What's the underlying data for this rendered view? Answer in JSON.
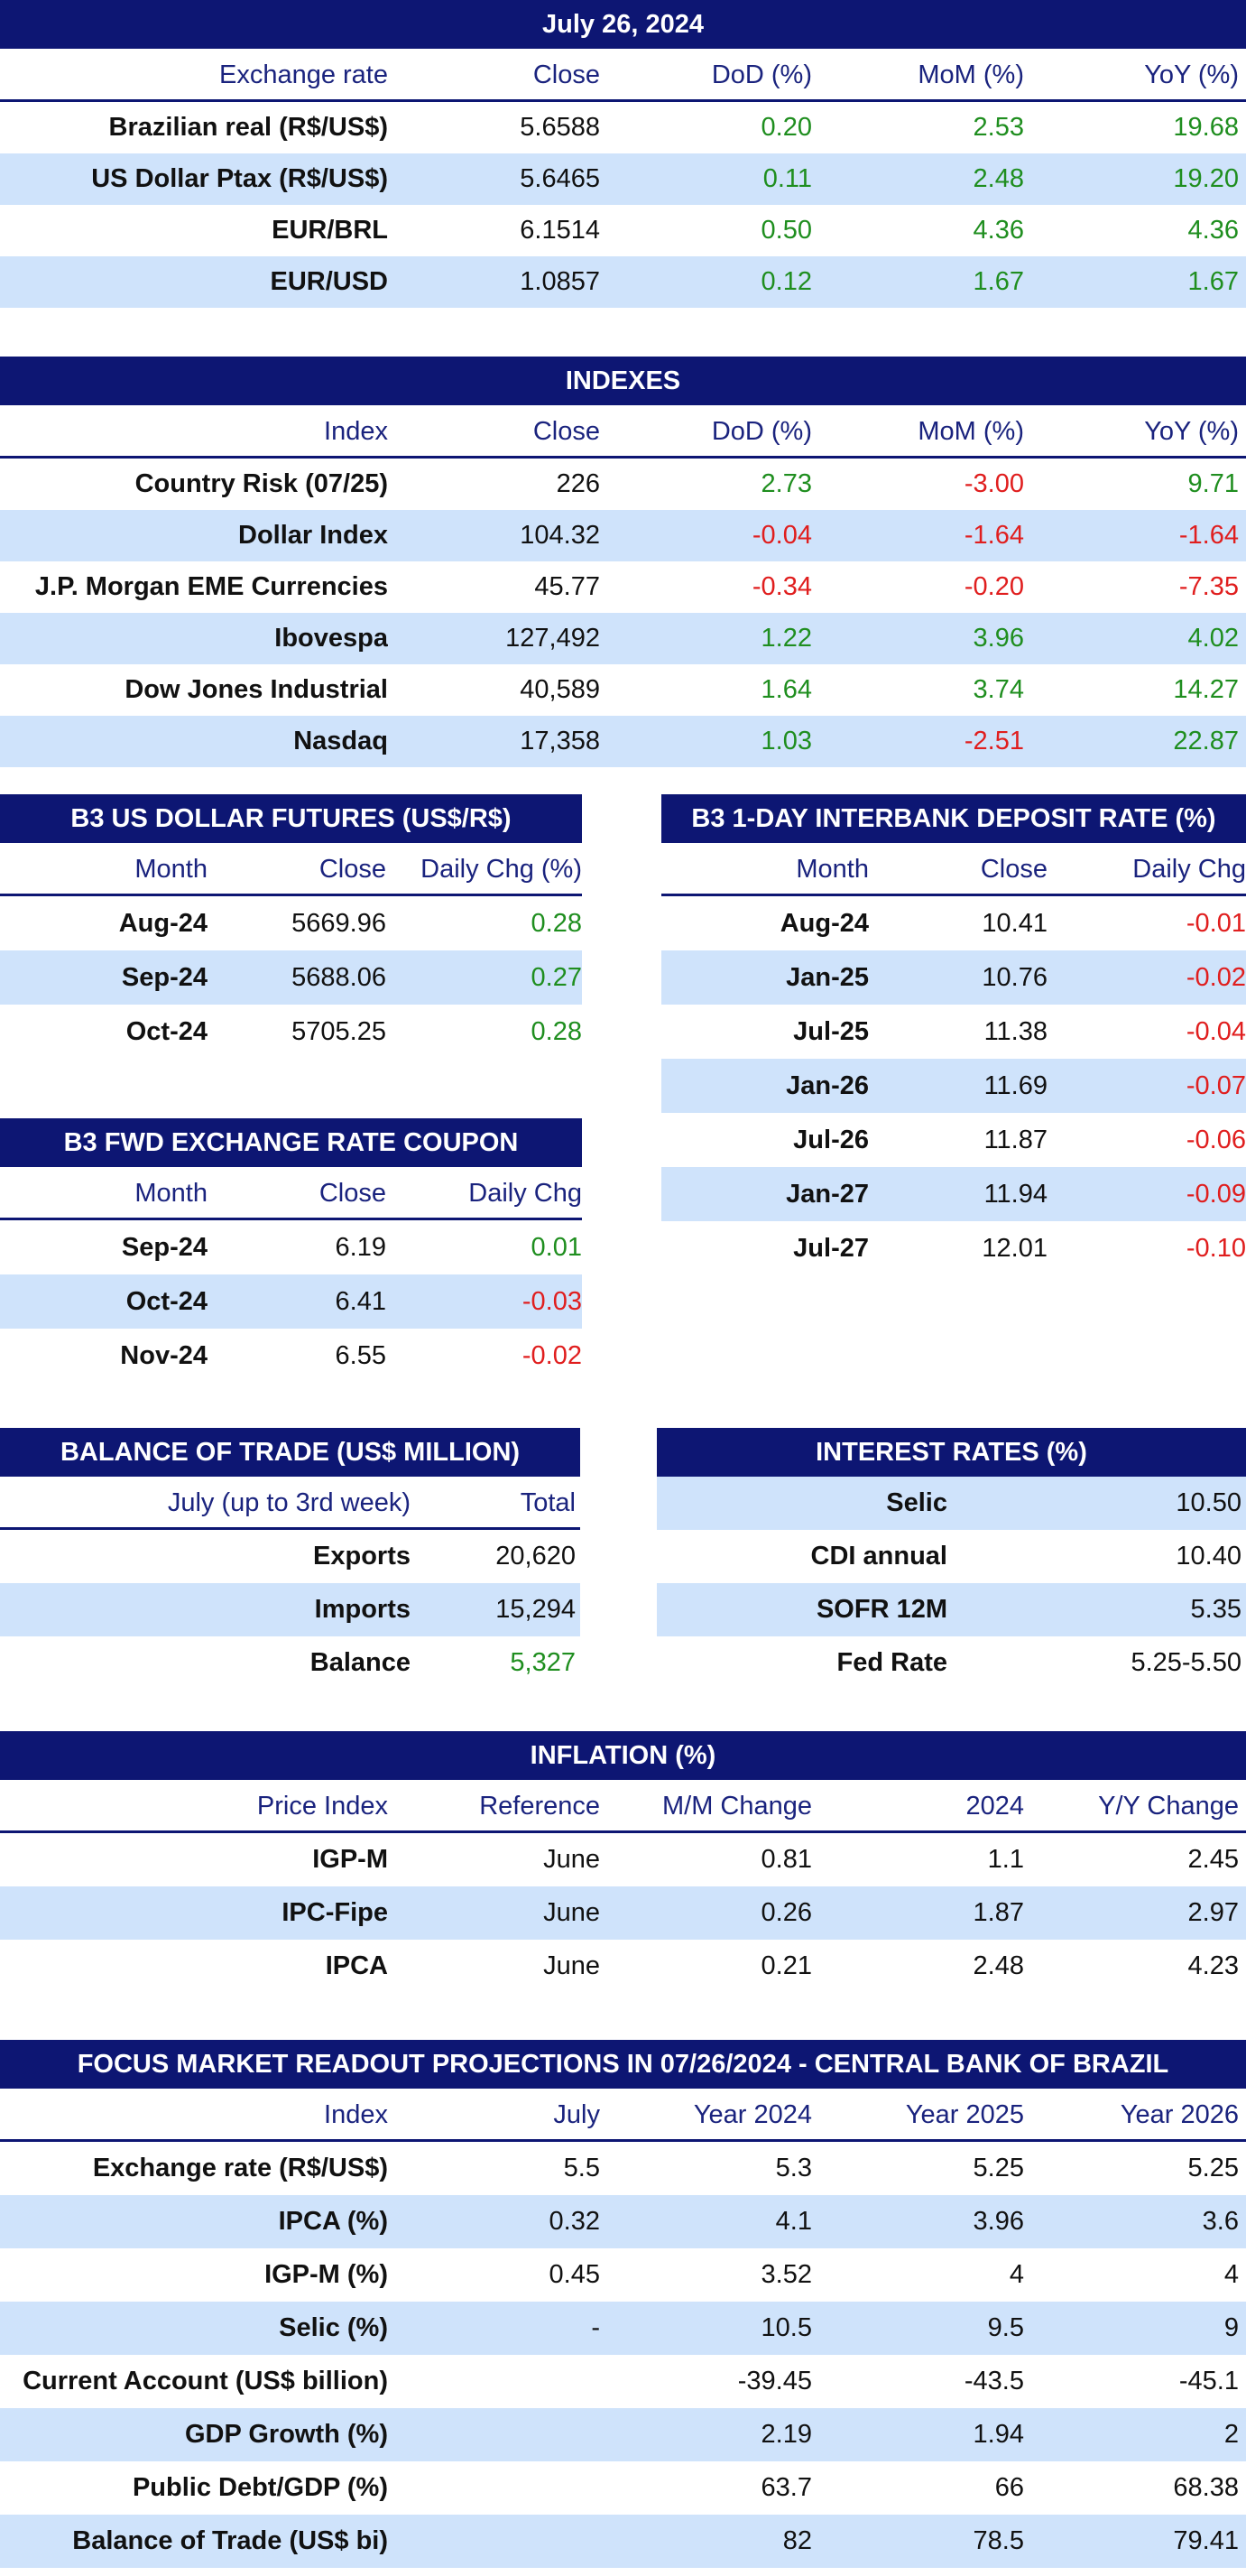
{
  "exchange": {
    "title": "July 26, 2024",
    "headers": [
      "Exchange rate",
      "Close",
      "DoD (%)",
      "MoM (%)",
      "YoY (%)"
    ],
    "rows": [
      {
        "label": "Brazilian real (R$/US$)",
        "close": "5.6588",
        "dod": "0.20",
        "mom": "2.53",
        "yoy": "19.68"
      },
      {
        "label": "US Dollar Ptax (R$/US$)",
        "close": "5.6465",
        "dod": "0.11",
        "mom": "2.48",
        "yoy": "19.20"
      },
      {
        "label": "EUR/BRL",
        "close": "6.1514",
        "dod": "0.50",
        "mom": "4.36",
        "yoy": "4.36"
      },
      {
        "label": "EUR/USD",
        "close": "1.0857",
        "dod": "0.12",
        "mom": "1.67",
        "yoy": "1.67"
      }
    ]
  },
  "indexes": {
    "title": "INDEXES",
    "headers": [
      "Index",
      "Close",
      "DoD (%)",
      "MoM (%)",
      "YoY (%)"
    ],
    "rows": [
      {
        "label": "Country Risk (07/25)",
        "close": "226",
        "dod": "2.73",
        "mom": "-3.00",
        "yoy": "9.71"
      },
      {
        "label": "Dollar Index",
        "close": "104.32",
        "dod": "-0.04",
        "mom": "-1.64",
        "yoy": "-1.64"
      },
      {
        "label": "J.P. Morgan EME Currencies",
        "close": "45.77",
        "dod": "-0.34",
        "mom": "-0.20",
        "yoy": "-7.35"
      },
      {
        "label": "Ibovespa",
        "close": "127,492",
        "dod": "1.22",
        "mom": "3.96",
        "yoy": "4.02"
      },
      {
        "label": "Dow Jones Industrial",
        "close": "40,589",
        "dod": "1.64",
        "mom": "3.74",
        "yoy": "14.27"
      },
      {
        "label": "Nasdaq",
        "close": "17,358",
        "dod": "1.03",
        "mom": "-2.51",
        "yoy": "22.87"
      }
    ]
  },
  "futures": {
    "title": "B3 US DOLLAR FUTURES (US$/R$)",
    "headers": [
      "Month",
      "Close",
      "Daily Chg (%)"
    ],
    "rows": [
      {
        "month": "Aug-24",
        "close": "5669.96",
        "chg": "0.28"
      },
      {
        "month": "Sep-24",
        "close": "5688.06",
        "chg": "0.27"
      },
      {
        "month": "Oct-24",
        "close": "5705.25",
        "chg": "0.28"
      }
    ]
  },
  "interbank": {
    "title": "B3 1-DAY INTERBANK DEPOSIT RATE (%)",
    "headers": [
      "Month",
      "Close",
      "Daily Chg"
    ],
    "rows": [
      {
        "month": "Aug-24",
        "close": "10.41",
        "chg": "-0.01"
      },
      {
        "month": "Jan-25",
        "close": "10.76",
        "chg": "-0.02"
      },
      {
        "month": "Jul-25",
        "close": "11.38",
        "chg": "-0.04"
      },
      {
        "month": "Jan-26",
        "close": "11.69",
        "chg": "-0.07"
      },
      {
        "month": "Jul-26",
        "close": "11.87",
        "chg": "-0.06"
      },
      {
        "month": "Jan-27",
        "close": "11.94",
        "chg": "-0.09"
      },
      {
        "month": "Jul-27",
        "close": "12.01",
        "chg": "-0.10"
      }
    ]
  },
  "coupon": {
    "title": "B3 FWD EXCHANGE RATE COUPON",
    "headers": [
      "Month",
      "Close",
      "Daily Chg"
    ],
    "rows": [
      {
        "month": "Sep-24",
        "close": "6.19",
        "chg": "0.01"
      },
      {
        "month": "Oct-24",
        "close": "6.41",
        "chg": "-0.03"
      },
      {
        "month": "Nov-24",
        "close": "6.55",
        "chg": "-0.02"
      }
    ]
  },
  "trade": {
    "title": "BALANCE OF TRADE (US$ MILLION)",
    "headers": [
      "July (up to 3rd week)",
      "Total"
    ],
    "rows": [
      {
        "label": "Exports",
        "value": "20,620"
      },
      {
        "label": "Imports",
        "value": "15,294"
      },
      {
        "label": "Balance",
        "value": "5,327"
      }
    ]
  },
  "rates": {
    "title": "INTEREST RATES (%)",
    "rows": [
      {
        "label": "Selic",
        "value": "10.50"
      },
      {
        "label": "CDI annual",
        "value": "10.40"
      },
      {
        "label": "SOFR 12M",
        "value": "5.35"
      },
      {
        "label": "Fed Rate",
        "value": "5.25-5.50"
      }
    ]
  },
  "inflation": {
    "title": "INFLATION (%)",
    "headers": [
      "Price Index",
      "Reference",
      "M/M Change",
      "2024",
      "Y/Y Change"
    ],
    "rows": [
      {
        "label": "IGP-M",
        "ref": "June",
        "mm": "0.81",
        "ytd": "1.1",
        "yy": "2.45"
      },
      {
        "label": "IPC-Fipe",
        "ref": "June",
        "mm": "0.26",
        "ytd": "1.87",
        "yy": "2.97"
      },
      {
        "label": "IPCA",
        "ref": "June",
        "mm": "0.21",
        "ytd": "2.48",
        "yy": "4.23"
      }
    ]
  },
  "focus": {
    "title": "FOCUS MARKET READOUT PROJECTIONS IN 07/26/2024 - CENTRAL BANK OF BRAZIL",
    "headers": [
      "Index",
      "July",
      "Year 2024",
      "Year 2025",
      "Year 2026"
    ],
    "rows": [
      {
        "label": "Exchange rate (R$/US$)",
        "july": "5.5",
        "y24": "5.3",
        "y25": "5.25",
        "y26": "5.25"
      },
      {
        "label": "IPCA (%)",
        "july": "0.32",
        "y24": "4.1",
        "y25": "3.96",
        "y26": "3.6"
      },
      {
        "label": "IGP-M (%)",
        "july": "0.45",
        "y24": "3.52",
        "y25": "4",
        "y26": "4"
      },
      {
        "label": "Selic (%)",
        "july": "-",
        "y24": "10.5",
        "y25": "9.5",
        "y26": "9"
      },
      {
        "label": "Current Account (US$ billion)",
        "july": "",
        "y24": "-39.45",
        "y25": "-43.5",
        "y26": "-45.1"
      },
      {
        "label": "GDP Growth (%)",
        "july": "",
        "y24": "2.19",
        "y25": "1.94",
        "y26": "2"
      },
      {
        "label": "Public Debt/GDP (%)",
        "july": "",
        "y24": "63.7",
        "y25": "66",
        "y26": "68.38"
      },
      {
        "label": "Balance of Trade (US$ bi)",
        "july": "",
        "y24": "82",
        "y25": "78.5",
        "y26": "79.41"
      }
    ]
  },
  "colors": {
    "header_bar": "#0d1673",
    "alt_row": "#cfe3fb",
    "positive": "#1f8e1f",
    "negative": "#e01e1e"
  }
}
